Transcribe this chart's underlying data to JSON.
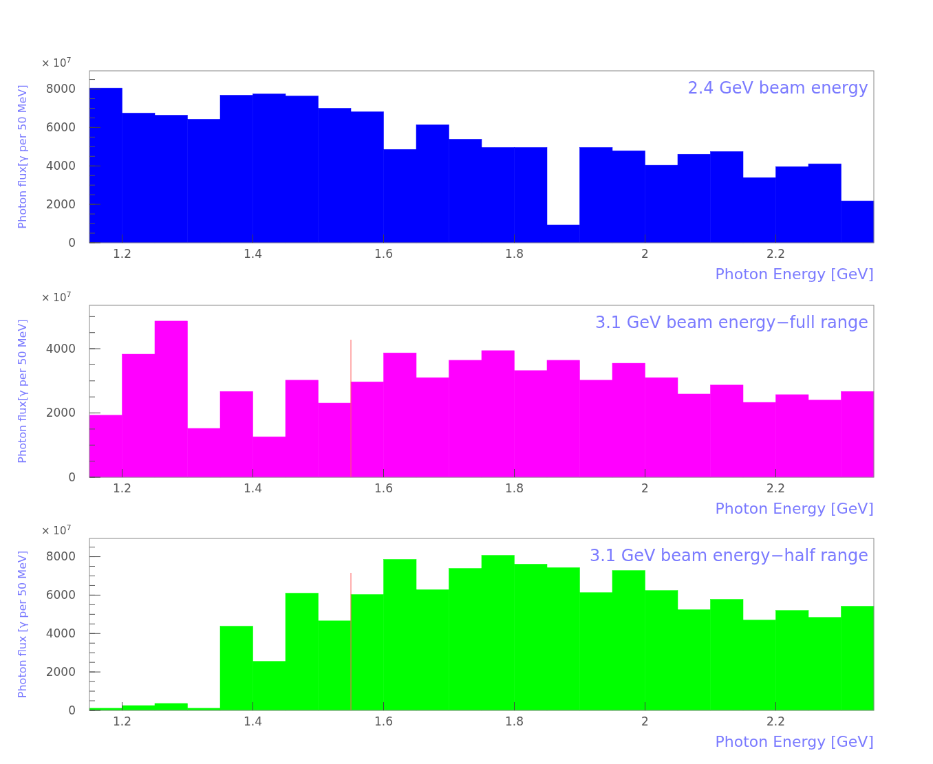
{
  "chart_data": [
    {
      "type": "histogram",
      "title": "2.4 GeV beam energy",
      "xlabel": "Photon Energy [GeV]",
      "ylabel": "Photon flux[γ per 50 MeV]",
      "annotations": [
        "× 10$^{7}$"
      ],
      "color": "#0000ff",
      "bins": [
        1.15,
        1.2,
        1.25,
        1.3,
        1.35,
        1.4,
        1.45,
        1.5,
        1.55,
        1.6,
        1.65,
        1.7,
        1.75,
        1.8,
        1.85,
        1.9,
        1.95,
        2.0,
        2.05,
        2.1,
        2.15,
        2.2,
        2.25,
        2.3,
        2.35
      ],
      "values": [
        8050,
        6750,
        6640,
        6430,
        7680,
        7750,
        7640,
        7000,
        6820,
        4860,
        6140,
        5390,
        4960,
        4960,
        930,
        4960,
        4790,
        4040,
        4610,
        4750,
        3390,
        3960,
        4110,
        2180
      ],
      "xlim": [
        1.15,
        2.35
      ],
      "xticks": [
        1.2,
        1.4,
        1.6,
        1.8,
        2,
        2.2
      ],
      "ylim": [
        0,
        8950
      ],
      "yticks": [
        0,
        2000,
        4000,
        6000,
        8000
      ]
    },
    {
      "type": "histogram",
      "title": "3.1 GeV beam energy−full range",
      "xlabel": "Photon Energy [GeV]",
      "ylabel": "Photon flux[γ per 50 MeV]",
      "annotations": [
        "× 10$^{7}$"
      ],
      "color": "#ff00ff",
      "bins": [
        1.15,
        1.2,
        1.25,
        1.3,
        1.35,
        1.4,
        1.45,
        1.5,
        1.55,
        1.6,
        1.65,
        1.7,
        1.75,
        1.8,
        1.85,
        1.9,
        1.95,
        2.0,
        2.05,
        2.1,
        2.15,
        2.2,
        2.25,
        2.3,
        2.35
      ],
      "values": [
        1930,
        3830,
        4860,
        1520,
        2670,
        1260,
        3020,
        2310,
        2970,
        3870,
        3100,
        3640,
        3940,
        3320,
        3640,
        3020,
        3550,
        3100,
        2590,
        2870,
        2330,
        2570,
        2400,
        2670
      ],
      "xlim": [
        1.15,
        2.35
      ],
      "xticks": [
        1.2,
        1.4,
        1.6,
        1.8,
        2,
        2.2
      ],
      "ylim": [
        0,
        5350
      ],
      "yticks": [
        0,
        2000,
        4000
      ],
      "ref_lines": [
        {
          "axis": "x",
          "value": 1.55,
          "color": "#ff6060"
        }
      ]
    },
    {
      "type": "histogram",
      "title": "3.1 GeV beam energy−half range",
      "xlabel": "Photon Energy [GeV]",
      "ylabel": "Photon flux [γ per 50 MeV]",
      "annotations": [
        "× 10$^{7}$"
      ],
      "color": "#00ff00",
      "bins": [
        1.15,
        1.2,
        1.25,
        1.3,
        1.35,
        1.4,
        1.45,
        1.5,
        1.55,
        1.6,
        1.65,
        1.7,
        1.75,
        1.8,
        1.85,
        1.9,
        1.95,
        2.0,
        2.05,
        2.1,
        2.15,
        2.2,
        2.25,
        2.3,
        2.35
      ],
      "values": [
        110,
        250,
        360,
        110,
        4380,
        2550,
        6100,
        4660,
        6030,
        7860,
        6280,
        7390,
        8070,
        7610,
        7430,
        6130,
        7280,
        6240,
        5240,
        5780,
        4700,
        5200,
        4840,
        5420
      ],
      "xlim": [
        1.15,
        2.35
      ],
      "xticks": [
        1.2,
        1.4,
        1.6,
        1.8,
        2,
        2.2
      ],
      "ylim": [
        0,
        8950
      ],
      "yticks": [
        0,
        2000,
        4000,
        6000,
        8000
      ],
      "ref_lines": [
        {
          "axis": "x",
          "value": 1.55,
          "color": "#ff6060"
        }
      ]
    }
  ]
}
